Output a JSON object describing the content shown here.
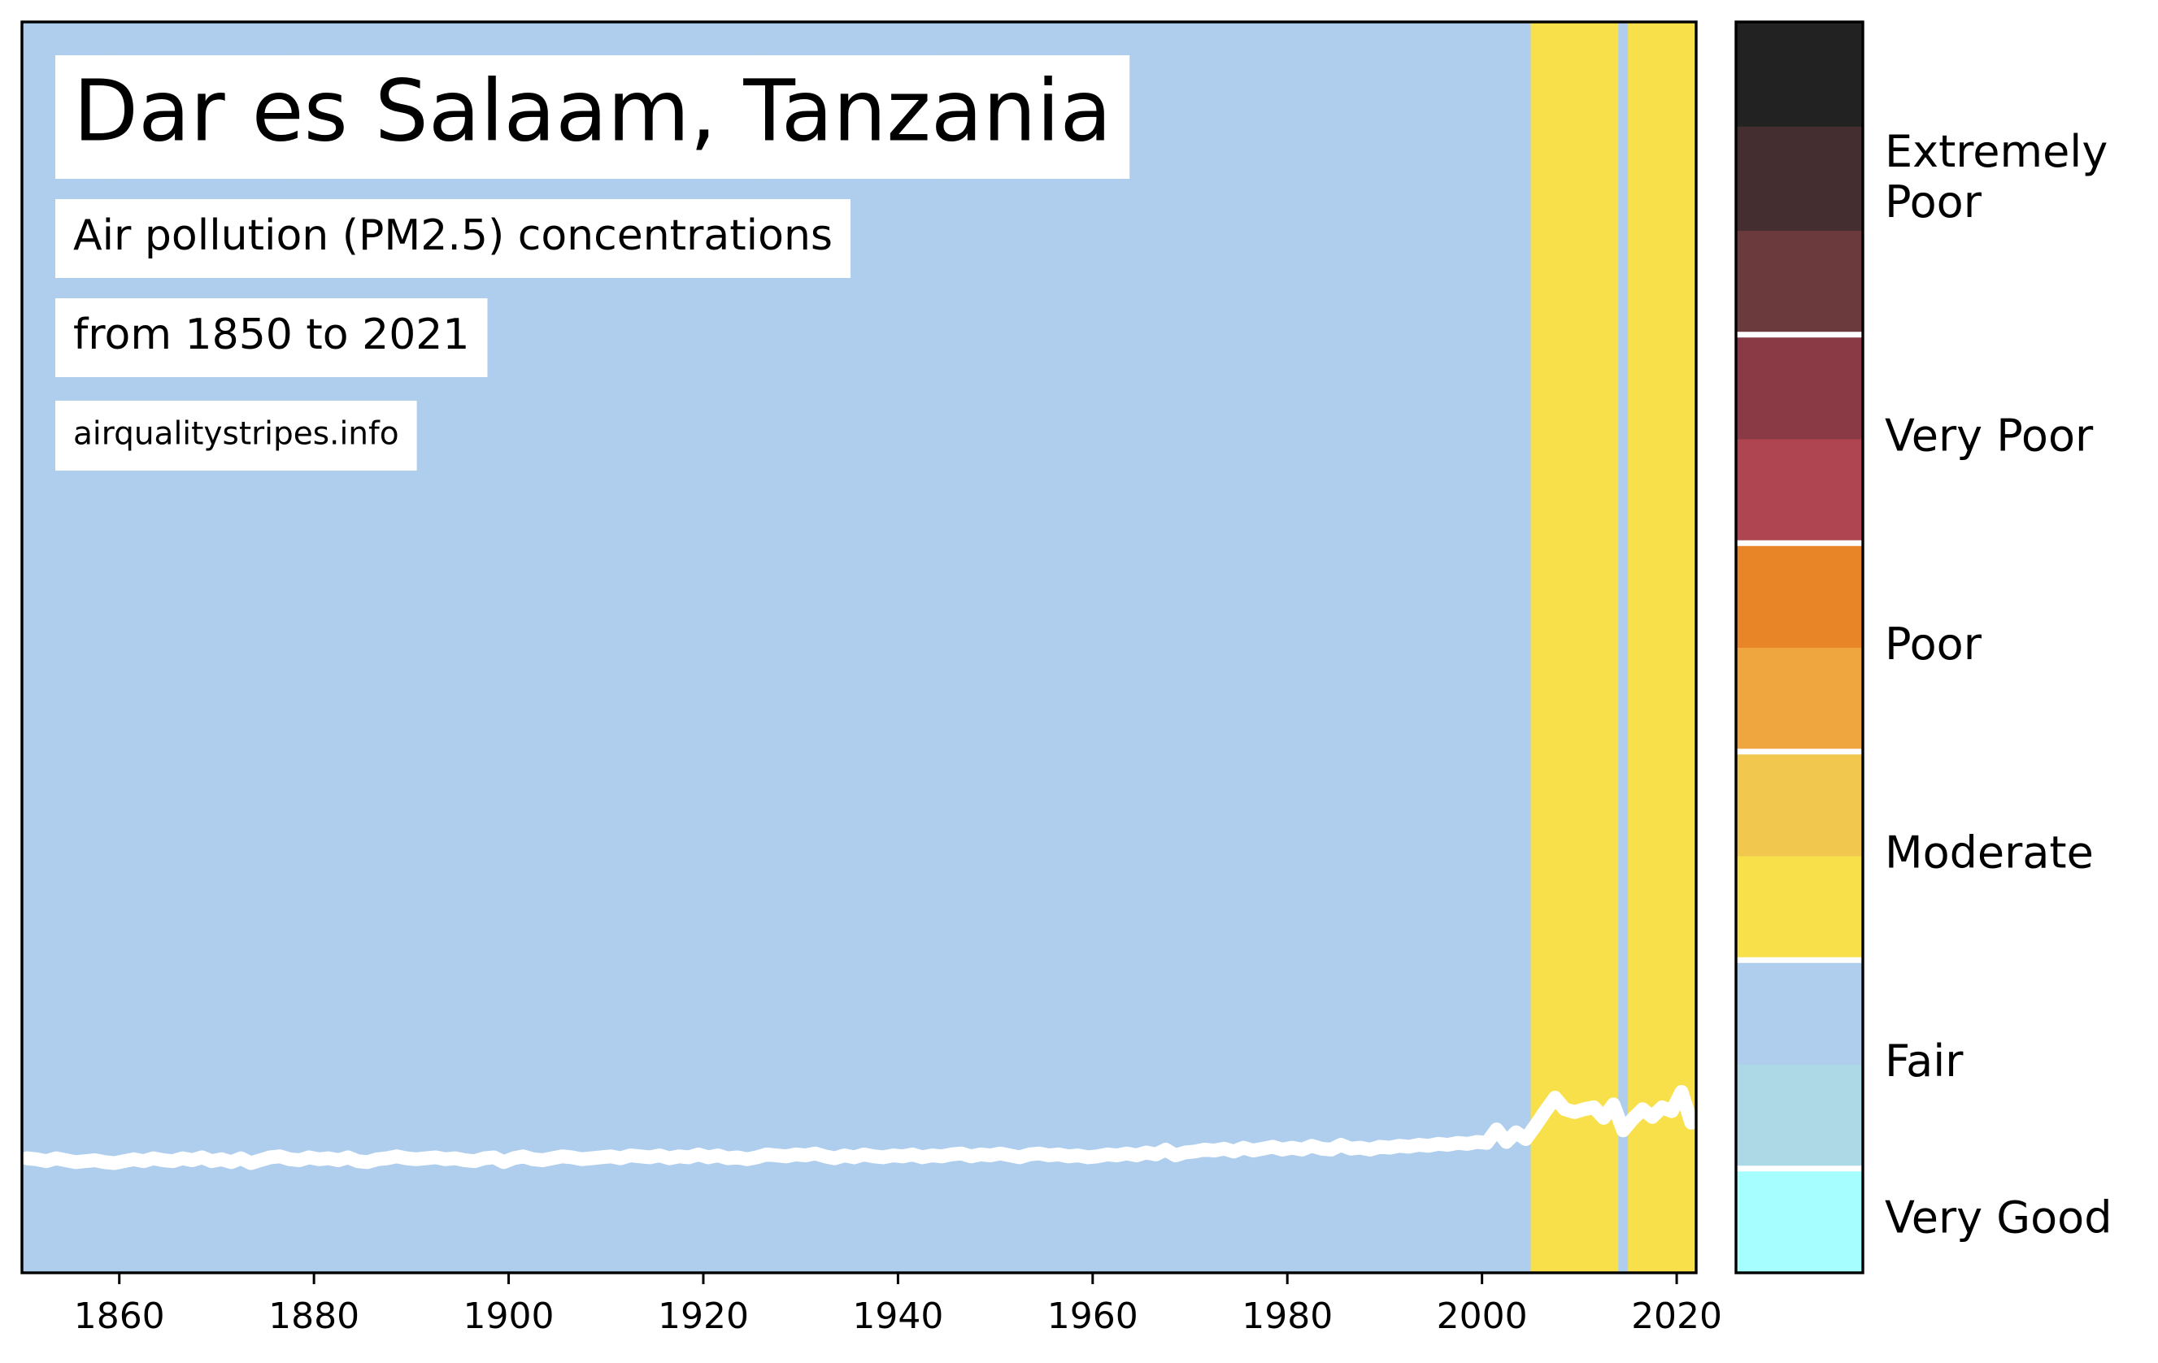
{
  "chart_data": {
    "type": "stripes",
    "title": "Dar es Salaam, Tanzania",
    "subtitle": "Air pollution (PM2.5) concentrations",
    "period": "from 1850 to 2021",
    "source": "airqualitystripes.info",
    "x": [
      1850,
      1851,
      1852,
      1853,
      1854,
      1855,
      1856,
      1857,
      1858,
      1859,
      1860,
      1861,
      1862,
      1863,
      1864,
      1865,
      1866,
      1867,
      1868,
      1869,
      1870,
      1871,
      1872,
      1873,
      1874,
      1875,
      1876,
      1877,
      1878,
      1879,
      1880,
      1881,
      1882,
      1883,
      1884,
      1885,
      1886,
      1887,
      1888,
      1889,
      1890,
      1891,
      1892,
      1893,
      1894,
      1895,
      1896,
      1897,
      1898,
      1899,
      1900,
      1901,
      1902,
      1903,
      1904,
      1905,
      1906,
      1907,
      1908,
      1909,
      1910,
      1911,
      1912,
      1913,
      1914,
      1915,
      1916,
      1917,
      1918,
      1919,
      1920,
      1921,
      1922,
      1923,
      1924,
      1925,
      1926,
      1927,
      1928,
      1929,
      1930,
      1931,
      1932,
      1933,
      1934,
      1935,
      1936,
      1937,
      1938,
      1939,
      1940,
      1941,
      1942,
      1943,
      1944,
      1945,
      1946,
      1947,
      1948,
      1949,
      1950,
      1951,
      1952,
      1953,
      1954,
      1955,
      1956,
      1957,
      1958,
      1959,
      1960,
      1961,
      1962,
      1963,
      1964,
      1965,
      1966,
      1967,
      1968,
      1969,
      1970,
      1971,
      1972,
      1973,
      1974,
      1975,
      1976,
      1977,
      1978,
      1979,
      1980,
      1981,
      1982,
      1983,
      1984,
      1985,
      1986,
      1987,
      1988,
      1989,
      1990,
      1991,
      1992,
      1993,
      1994,
      1995,
      1996,
      1997,
      1998,
      1999,
      2000,
      2001,
      2002,
      2003,
      2004,
      2005,
      2006,
      2007,
      2008,
      2009,
      2010,
      2011,
      2012,
      2013,
      2014,
      2015,
      2016,
      2017,
      2018,
      2019,
      2020,
      2021
    ],
    "values": [
      11.9,
      11.8,
      11.6,
      11.9,
      11.7,
      11.5,
      11.6,
      11.7,
      11.5,
      11.4,
      11.6,
      11.8,
      11.6,
      11.9,
      11.7,
      11.6,
      11.9,
      11.7,
      12.0,
      11.6,
      11.8,
      11.5,
      11.9,
      11.4,
      11.7,
      12.0,
      12.1,
      11.8,
      11.7,
      12.0,
      11.8,
      11.9,
      11.7,
      12.0,
      11.6,
      11.5,
      11.8,
      11.9,
      12.1,
      11.9,
      11.8,
      11.9,
      12.0,
      11.8,
      11.9,
      11.7,
      11.6,
      11.9,
      12.0,
      11.5,
      11.9,
      12.1,
      11.8,
      11.7,
      11.9,
      12.1,
      12.0,
      11.8,
      11.9,
      12.0,
      12.1,
      11.9,
      12.2,
      12.1,
      12.0,
      12.2,
      11.9,
      12.1,
      12.0,
      12.3,
      12.0,
      12.2,
      11.9,
      12.0,
      11.8,
      12.0,
      12.3,
      12.2,
      12.1,
      12.3,
      12.2,
      12.4,
      12.1,
      11.9,
      12.2,
      12.0,
      12.3,
      12.1,
      12.0,
      12.2,
      12.1,
      12.3,
      12.0,
      12.2,
      12.1,
      12.3,
      12.4,
      12.1,
      12.3,
      12.2,
      12.4,
      12.2,
      12.0,
      12.3,
      12.4,
      12.2,
      12.3,
      12.1,
      12.2,
      12.0,
      12.1,
      12.3,
      12.2,
      12.4,
      12.2,
      12.5,
      12.3,
      12.8,
      12.2,
      12.5,
      12.6,
      12.8,
      12.7,
      12.9,
      12.6,
      13.0,
      12.7,
      12.9,
      13.1,
      12.8,
      13.0,
      12.8,
      13.2,
      12.9,
      12.8,
      13.3,
      12.9,
      13.0,
      12.8,
      13.1,
      13.0,
      13.2,
      13.1,
      13.3,
      13.2,
      13.4,
      13.3,
      13.5,
      13.4,
      13.6,
      13.5,
      14.9,
      13.6,
      14.6,
      13.9,
      15.3,
      16.8,
      18.2,
      17.0,
      16.7,
      17.0,
      17.2,
      16.1,
      17.5,
      14.8,
      16.0,
      17.0,
      16.2,
      17.2,
      16.8,
      18.8,
      15.6
    ],
    "line_color": "#ffffff",
    "xlim": [
      1850,
      2022
    ],
    "ylim": [
      0,
      130
    ],
    "xticks": [
      1860,
      1880,
      1900,
      1920,
      1940,
      1960,
      1980,
      2000,
      2020
    ],
    "colorbar": {
      "lim": [
        0,
        60
      ],
      "bounds": [
        0,
        5,
        10,
        15,
        20,
        25,
        30,
        35,
        40,
        45,
        50,
        55,
        60
      ],
      "colors": [
        "#a6fefe",
        "#add8e6",
        "#afceed",
        "#f8e04a",
        "#f1c84d",
        "#f0a63f",
        "#e88627",
        "#ae4551",
        "#893a45",
        "#6a3a3c",
        "#452e2f",
        "#222222"
      ],
      "levels": [
        {
          "label": "Very Good",
          "min": 0,
          "max": 5
        },
        {
          "label": "Fair",
          "min": 5,
          "max": 15
        },
        {
          "label": "Moderate",
          "min": 15,
          "max": 25
        },
        {
          "label": "Poor",
          "min": 25,
          "max": 35
        },
        {
          "label": "Very Poor",
          "min": 35,
          "max": 45
        },
        {
          "label": "Extremely Poor",
          "min": 45,
          "max": 60
        }
      ]
    }
  }
}
